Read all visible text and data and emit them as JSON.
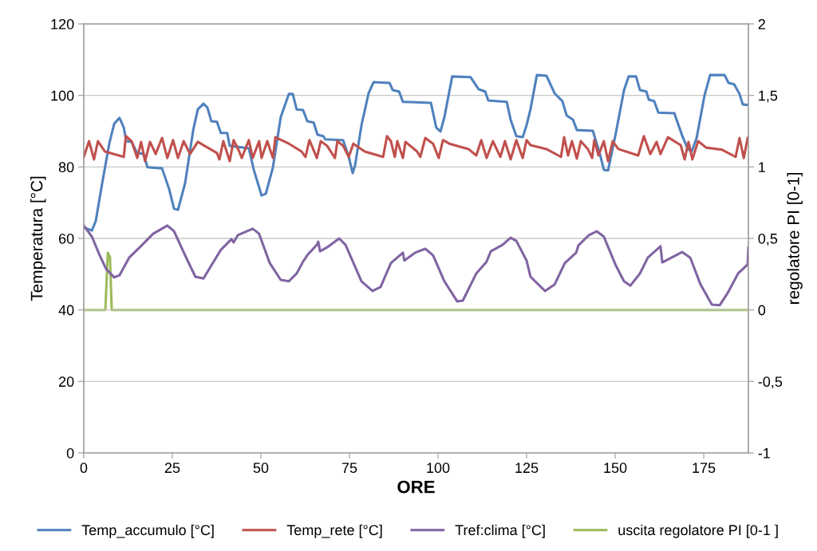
{
  "chart_data": {
    "type": "line",
    "xlabel": "ORE",
    "ylabel": "Temperatura [°C]",
    "y2label": "regolatore PI [0-1]",
    "xlim": [
      0,
      187.6
    ],
    "xticks": [
      0,
      25,
      50,
      75,
      100,
      125,
      150,
      175
    ],
    "ylim": [
      0,
      120
    ],
    "yticks": [
      0,
      20,
      40,
      60,
      80,
      100,
      120
    ],
    "y2lim": [
      -1,
      2
    ],
    "y2ticks": [
      {
        "value": -1,
        "label": "-1"
      },
      {
        "value": -0.5,
        "label": "-0,5"
      },
      {
        "value": 0,
        "label": "0"
      },
      {
        "value": 0.5,
        "label": "0,5"
      },
      {
        "value": 1,
        "label": "1"
      },
      {
        "value": 1.5,
        "label": "1,5"
      },
      {
        "value": 2,
        "label": "2"
      }
    ],
    "grid": "y",
    "legend": "bottom",
    "marker": "none",
    "line_style": "solid",
    "series": [
      {
        "name": "Temp_accumulo [°C]",
        "color": "#4f81bd",
        "x": [
          0,
          2.3,
          3.4,
          5.2,
          7.2,
          8.6,
          10.1,
          11.3,
          12,
          13.5,
          15.1,
          16.9,
          18,
          22.1,
          24.1,
          25.5,
          26.6,
          28.6,
          30.9,
          32.2,
          33.8,
          34.9,
          36,
          37.6,
          38.7,
          40.5,
          41.2,
          46.6,
          48,
          50.2,
          51.4,
          53.4,
          55.6,
          57.9,
          59,
          60.1,
          61.9,
          63.1,
          64.9,
          66,
          67.6,
          68.2,
          73.2,
          74.8,
          75.9,
          76.6,
          78.4,
          80.4,
          81.8,
          86.3,
          87.2,
          89,
          90.1,
          98,
          99.5,
          100.7,
          101.8,
          104,
          109.2,
          111.5,
          113.3,
          114.2,
          119.4,
          120.5,
          122.1,
          123.9,
          125,
          126.1,
          127.9,
          130.6,
          132.9,
          135.1,
          136.3,
          138.1,
          139.2,
          143.7,
          145.7,
          146.8,
          148,
          150.2,
          152.5,
          153.8,
          155.9,
          157,
          158.8,
          159.5,
          161,
          162.2,
          166.7,
          168.9,
          170.5,
          171.6,
          173,
          175.2,
          176.8,
          180.9,
          182,
          183.6,
          185.1,
          186,
          187.6
        ],
        "values": [
          63.1,
          62.2,
          64.9,
          75.4,
          86.5,
          92.1,
          93.7,
          91,
          87.2,
          87,
          83.9,
          83.6,
          79.9,
          79.6,
          73.8,
          68.3,
          68,
          75.4,
          90.3,
          96.1,
          97.7,
          96.6,
          92.8,
          92.6,
          89.5,
          89.5,
          85.9,
          85.2,
          79.2,
          72,
          72.5,
          79.9,
          93.9,
          100.4,
          100.4,
          96.1,
          95.9,
          92.8,
          92.4,
          89,
          88.6,
          87.7,
          87.5,
          82.8,
          78.3,
          80.5,
          91.7,
          100.6,
          103.7,
          103.5,
          101.5,
          101.1,
          98.2,
          97.9,
          91,
          89.9,
          93.9,
          105.3,
          105.1,
          101.7,
          101.1,
          98.6,
          98.2,
          93.2,
          88.6,
          88.3,
          91.7,
          96.1,
          105.7,
          105.5,
          100.6,
          98.4,
          94.4,
          93.2,
          90.3,
          90.1,
          83.6,
          79.2,
          79,
          89.5,
          101.5,
          105.3,
          105.3,
          101.5,
          101.1,
          98.8,
          98.4,
          95.2,
          95,
          88.8,
          85,
          84.3,
          88.1,
          99.9,
          105.7,
          105.7,
          103.5,
          103.1,
          100.4,
          97.5,
          97.3
        ]
      },
      {
        "name": "Temp_rete [°C]",
        "color": "#c0504d",
        "x": [
          0,
          1.5,
          2.9,
          4,
          6,
          11.3,
          11.9,
          13.5,
          15.1,
          16.2,
          17.3,
          18.7,
          20.3,
          22.1,
          23.6,
          25.2,
          26.6,
          28.2,
          30,
          32.2,
          37.6,
          38.3,
          39.4,
          41.2,
          42.3,
          43.9,
          44.6,
          46.6,
          47.7,
          49.5,
          50.2,
          51.8,
          53.4,
          54.1,
          57.9,
          61.5,
          62.6,
          63.7,
          65.8,
          66.9,
          68.7,
          70.9,
          71.6,
          73.2,
          74.8,
          76.1,
          79.3,
          84.5,
          85.6,
          86.7,
          87.8,
          88.5,
          90.1,
          90.8,
          94.1,
          95,
          96.4,
          98.6,
          100.2,
          101.4,
          103.2,
          108.6,
          110.8,
          112.2,
          113.7,
          115.5,
          117.6,
          118.9,
          120.5,
          122.1,
          123.9,
          125,
          126.1,
          130.6,
          134.7,
          135.6,
          136.7,
          137.8,
          139.2,
          140.3,
          142.3,
          143.5,
          144.1,
          145.3,
          146.8,
          148,
          149.3,
          150.9,
          156.5,
          158.1,
          159.9,
          161.7,
          162.8,
          164.9,
          168.5,
          169.6,
          170.7,
          171.8,
          173.4,
          175.7,
          180.2,
          184,
          185.1,
          186.3,
          187.4
        ],
        "values": [
          82.8,
          87.2,
          82.1,
          87.2,
          84.3,
          82.8,
          88.6,
          87.2,
          82.5,
          87,
          81.6,
          87,
          83.6,
          88.1,
          82.5,
          87.5,
          82.5,
          87.2,
          83.6,
          87,
          83.9,
          82.1,
          87.2,
          81.6,
          87.5,
          84.3,
          82.5,
          87.5,
          82.5,
          87.2,
          82.5,
          87.2,
          82.5,
          88.3,
          86.5,
          84.3,
          82.8,
          87.5,
          82.5,
          87.2,
          85.9,
          82.5,
          87.2,
          85.9,
          82.8,
          86.5,
          84.3,
          82.8,
          88.6,
          87.2,
          82.8,
          87.2,
          82.5,
          87,
          84.3,
          82.8,
          88.1,
          86.5,
          82.5,
          87.5,
          86.5,
          85,
          83.2,
          87.5,
          82.5,
          87.2,
          82.8,
          87.2,
          82.1,
          87.5,
          82.5,
          87.5,
          86.1,
          85,
          82.8,
          88.3,
          83.2,
          87.2,
          82.3,
          87.2,
          85,
          82.5,
          87.5,
          83.2,
          87.2,
          81.6,
          87.2,
          85,
          83.2,
          88.6,
          83.6,
          87,
          83.6,
          88.3,
          86.1,
          82.1,
          87,
          82.1,
          87.2,
          85.4,
          84.8,
          82.8,
          88.1,
          82.5,
          88.1
        ]
      },
      {
        "name": "Tref:clima [°C]",
        "color": "#8064a2",
        "x": [
          0,
          2.3,
          4.5,
          6.3,
          8.6,
          10.1,
          12.8,
          15.8,
          19.6,
          23.6,
          25.5,
          28.6,
          31.5,
          33.8,
          36,
          38.7,
          41.7,
          42.3,
          43.5,
          47.7,
          49.5,
          52.5,
          55.6,
          57.9,
          60.1,
          61.9,
          63.1,
          65.8,
          66.2,
          66.7,
          68.7,
          72.1,
          73.9,
          78.4,
          81.5,
          83.8,
          86.7,
          90.1,
          90.5,
          93.5,
          96.4,
          98.6,
          101.8,
          105.4,
          107,
          110.8,
          113.7,
          114.9,
          118.2,
          120.5,
          122.1,
          125,
          126.1,
          130.2,
          132.9,
          135.8,
          139,
          139.6,
          142.6,
          144.8,
          146.8,
          150.2,
          152.5,
          154.3,
          157,
          159.2,
          162.8,
          163.3,
          168.9,
          171.2,
          174.1,
          177.3,
          179.5,
          181.8,
          184.7,
          187.4,
          187.6
        ],
        "values": [
          63.6,
          60.5,
          55.3,
          51.5,
          49.1,
          49.7,
          54.6,
          57.5,
          61.3,
          63.6,
          62,
          55.3,
          49.3,
          48.8,
          52.4,
          56.8,
          59.8,
          58.9,
          60.9,
          62.7,
          61.3,
          53.1,
          48.4,
          48,
          50.2,
          53.5,
          55.3,
          58.2,
          59.1,
          56.4,
          57.5,
          60,
          58.2,
          48,
          45.3,
          46.4,
          53.1,
          56,
          53.8,
          56,
          57.1,
          55.3,
          48,
          42.4,
          42.6,
          50.2,
          53.5,
          56.4,
          58.2,
          60.2,
          59.3,
          53.8,
          49.3,
          45.3,
          47.1,
          53.1,
          56,
          58,
          60.9,
          62,
          60.5,
          52.4,
          48,
          46.8,
          50.2,
          54.6,
          57.8,
          53.3,
          56.2,
          54.6,
          47.1,
          41.5,
          41.3,
          44.8,
          50.2,
          52.7,
          57.5
        ]
      },
      {
        "name": "uscita regolatore PI [0-1 ]",
        "color": "#9bbb59",
        "axis": "y2",
        "x": [
          0,
          6.1,
          6.8,
          7.4,
          7.9,
          187.6
        ],
        "values": [
          0,
          0,
          0.4,
          0.37,
          0,
          0
        ]
      }
    ]
  }
}
